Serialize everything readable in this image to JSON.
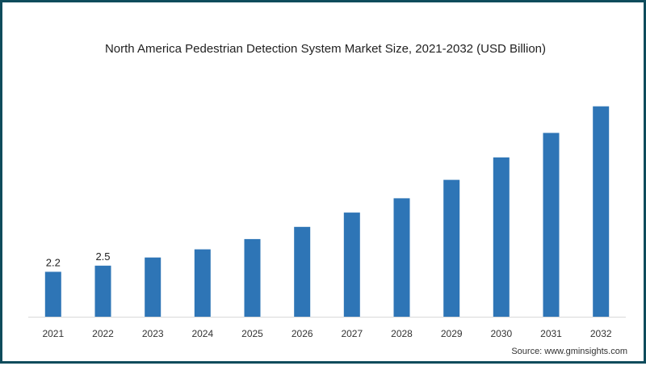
{
  "chart_data": {
    "type": "bar",
    "title": "North America Pedestrian Detection System Market Size, 2021-2032 (USD Billion)",
    "xlabel": "",
    "ylabel": "",
    "categories": [
      "2021",
      "2022",
      "2023",
      "2024",
      "2025",
      "2026",
      "2027",
      "2028",
      "2029",
      "2030",
      "2031",
      "2032"
    ],
    "values": [
      2.2,
      2.5,
      2.9,
      3.3,
      3.8,
      4.4,
      5.1,
      5.8,
      6.7,
      7.8,
      9.0,
      10.3
    ],
    "data_labels": [
      "2.2",
      "2.5",
      null,
      null,
      null,
      null,
      null,
      null,
      null,
      null,
      null,
      null
    ],
    "ylim": [
      0,
      10.8
    ],
    "grid": false,
    "legend": "none",
    "bar_color": "#2e75b6"
  },
  "source": "Source: www.gminsights.com"
}
